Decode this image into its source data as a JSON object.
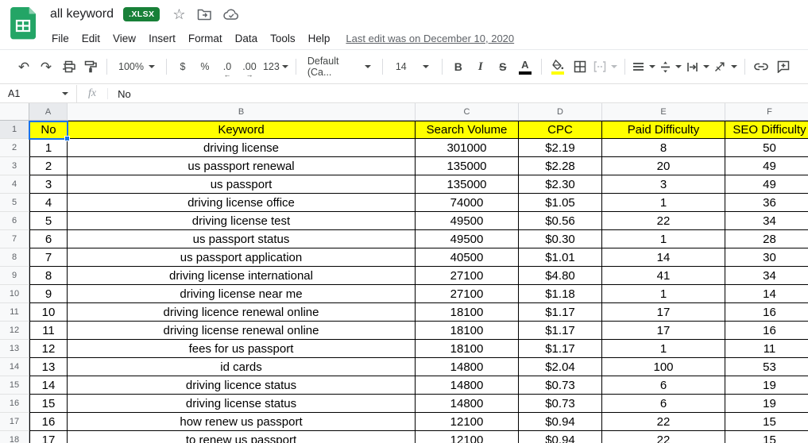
{
  "header": {
    "title": "all keyword",
    "file_type_badge": ".XLSX",
    "menu_items": [
      "File",
      "Edit",
      "View",
      "Insert",
      "Format",
      "Data",
      "Tools",
      "Help"
    ],
    "last_edit": "Last edit was on December 10, 2020"
  },
  "icons": {
    "undo": "↶",
    "redo": "↷",
    "star": "☆"
  },
  "toolbar": {
    "zoom": "100%",
    "currency": "$",
    "percent": "%",
    "decrease_decimal": ".0",
    "decrease_decimal_arrow": "←",
    "increase_decimal": ".00",
    "increase_decimal_arrow": "→",
    "more_formats": "123",
    "font_family": "Default (Ca...",
    "font_size": "14",
    "bold": "B",
    "italic": "I",
    "strikethrough": "S",
    "text_color": "A"
  },
  "formula_bar": {
    "name_box": "A1",
    "fx_label": "fx",
    "content": "No"
  },
  "colors": {
    "selection_blue": "#1a73e8",
    "header_fill_yellow": "#ffff00",
    "text_color_bar": "#000000",
    "fill_color_bar": "#ffff00",
    "badge_green": "#188038",
    "logo_green": "#23a566"
  },
  "sheet": {
    "selected_cell": "A1",
    "column_headers": [
      "A",
      "B",
      "C",
      "D",
      "E",
      "F"
    ],
    "visible_row_numbers": [
      "1",
      "2",
      "3",
      "4",
      "5",
      "6",
      "7",
      "8",
      "9",
      "10",
      "11",
      "12",
      "13",
      "14",
      "15",
      "16",
      "17",
      "18"
    ],
    "header_row": [
      "No",
      "Keyword",
      "Search Volume",
      "CPC",
      "Paid Difficulty",
      "SEO Difficulty"
    ],
    "rows": [
      [
        "1",
        "driving license",
        "301000",
        "$2.19",
        "8",
        "50"
      ],
      [
        "2",
        "us passport renewal",
        "135000",
        "$2.28",
        "20",
        "49"
      ],
      [
        "3",
        "us passport",
        "135000",
        "$2.30",
        "3",
        "49"
      ],
      [
        "4",
        "driving license office",
        "74000",
        "$1.05",
        "1",
        "36"
      ],
      [
        "5",
        "driving license test",
        "49500",
        "$0.56",
        "22",
        "34"
      ],
      [
        "6",
        "us passport status",
        "49500",
        "$0.30",
        "1",
        "28"
      ],
      [
        "7",
        "us passport application",
        "40500",
        "$1.01",
        "14",
        "30"
      ],
      [
        "8",
        "driving license international",
        "27100",
        "$4.80",
        "41",
        "34"
      ],
      [
        "9",
        "driving license near me",
        "27100",
        "$1.18",
        "1",
        "14"
      ],
      [
        "10",
        "driving licence renewal online",
        "18100",
        "$1.17",
        "17",
        "16"
      ],
      [
        "11",
        "driving license renewal online",
        "18100",
        "$1.17",
        "17",
        "16"
      ],
      [
        "12",
        "fees for us passport",
        "18100",
        "$1.17",
        "1",
        "11"
      ],
      [
        "13",
        "id cards",
        "14800",
        "$2.04",
        "100",
        "53"
      ],
      [
        "14",
        "driving licence status",
        "14800",
        "$0.73",
        "6",
        "19"
      ],
      [
        "15",
        "driving license status",
        "14800",
        "$0.73",
        "6",
        "19"
      ],
      [
        "16",
        "how renew us passport",
        "12100",
        "$0.94",
        "22",
        "15"
      ],
      [
        "17",
        "to renew us passport",
        "12100",
        "$0.94",
        "22",
        "15"
      ]
    ]
  }
}
